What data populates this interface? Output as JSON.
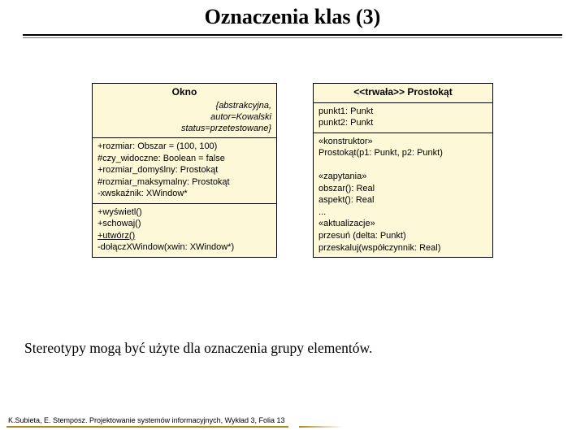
{
  "page": {
    "title": "Oznaczenia klas (3)",
    "body_text": "Stereotypy mogą być użyte dla oznaczenia grupy elementów.",
    "footer": "K.Subieta, E. Stemposz. Projektowanie systemów informacyjnych, Wykład 3, Folia 13"
  },
  "colors": {
    "box_bg": "#fdf8d7",
    "border": "#000000",
    "footer_accent": "#b48820"
  },
  "left_class": {
    "name": "Okno",
    "properties": "{abstrakcyjna,\nautor=Kowalski\nstatus=przetestowane}",
    "attributes": [
      "+rozmiar: Obszar = (100, 100)",
      "#czy_widoczne: Boolean = false",
      "+rozmiar_domyślny: Prostokąt",
      "#rozmiar_maksymalny: Prostokąt",
      "-xwskaźnik: XWindow*"
    ],
    "operations_plain": [
      "+wyświetl()",
      "+schowaj()"
    ],
    "operations_underlined": "+utwórz()",
    "operations_tail": [
      "-dołączXWindow(xwin: XWindow*)"
    ]
  },
  "right_class": {
    "name": "<<trwała>> Prostokąt",
    "attributes": [
      "punkt1: Punkt",
      "punkt2: Punkt"
    ],
    "operations": [
      "«konstruktor»",
      "Prostokąt(p1: Punkt, p2: Punkt)",
      "",
      "«zapytania»",
      "obszar(): Real",
      "aspekt(): Real",
      "...",
      "«aktualizacje»",
      "przesuń (delta: Punkt)",
      "przeskaluj(współczynnik: Real)"
    ]
  }
}
